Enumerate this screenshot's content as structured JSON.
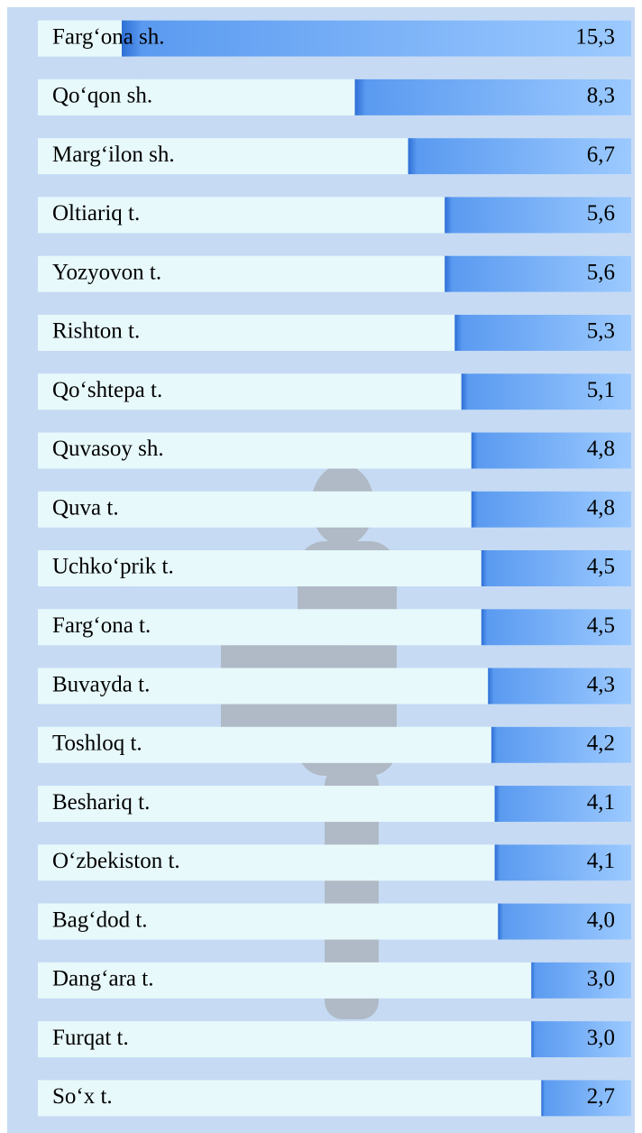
{
  "chart_data": {
    "type": "bar",
    "orientation": "horizontal",
    "color": "#4a8de8",
    "categories": [
      "Farg‘ona sh.",
      "Qo‘qon sh.",
      "Marg‘ilon sh.",
      "Oltiariq t.",
      "Yozyovon t.",
      "Rishton t.",
      "Qo‘shtepa t.",
      "Quvasoy sh.",
      "Quva t.",
      "Uchko‘prik t.",
      "Farg‘ona t.",
      "Buvayda t.",
      "Toshloq t.",
      "Beshariq t.",
      "O‘zbekiston t.",
      "Bag‘dod t.",
      "Dang‘ara t.",
      "Furqat t.",
      "So‘x t."
    ],
    "values": [
      15.3,
      8.3,
      6.7,
      5.6,
      5.6,
      5.3,
      5.1,
      4.8,
      4.8,
      4.5,
      4.5,
      4.3,
      4.2,
      4.1,
      4.1,
      4.0,
      3.0,
      3.0,
      2.7
    ],
    "value_labels": [
      "15,3",
      "8,3",
      "6,7",
      "5,6",
      "5,6",
      "5,3",
      "5,1",
      "4,8",
      "4,8",
      "4,5",
      "4,5",
      "4,3",
      "4,2",
      "4,1",
      "4,1",
      "4,0",
      "3,0",
      "3,0",
      "2,7"
    ]
  }
}
